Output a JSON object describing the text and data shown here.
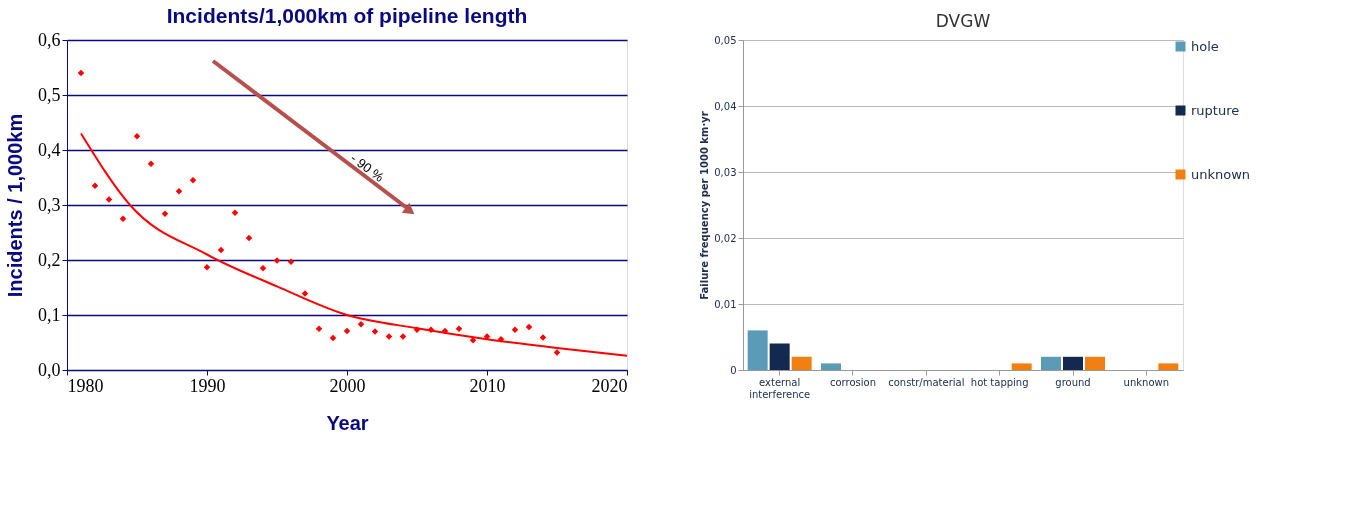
{
  "chart_data": [
    {
      "type": "scatter",
      "title": "Incidents/1,000km of pipeline length",
      "xlabel": "Year",
      "ylabel": "Incidents / 1,000km",
      "xlim": [
        1980,
        2020
      ],
      "xticks": [
        1980,
        1990,
        2000,
        2010,
        2020
      ],
      "ylim": [
        0,
        0.6
      ],
      "yticks": [
        {
          "value": 0,
          "label": "0,0"
        },
        {
          "value": 0.1,
          "label": "0,1"
        },
        {
          "value": 0.2,
          "label": "0,2"
        },
        {
          "value": 0.3,
          "label": "0,3"
        },
        {
          "value": 0.4,
          "label": "0,4"
        },
        {
          "value": 0.5,
          "label": "0,5"
        },
        {
          "value": 0.6,
          "label": "0,6"
        }
      ],
      "grid": "y",
      "legend": false,
      "series": [
        {
          "type": "scatter",
          "marker": "diamond",
          "color": "#ff0000",
          "x": [
            1981,
            1982,
            1983,
            1984,
            1985,
            1986,
            1987,
            1988,
            1989,
            1990,
            1991,
            1992,
            1993,
            1994,
            1995,
            1996,
            1997,
            1998,
            1999,
            2000,
            2001,
            2002,
            2003,
            2004,
            2005,
            2006,
            2007,
            2008,
            2009,
            2010,
            2011,
            2012,
            2013,
            2014,
            2015
          ],
          "values": [
            0.54,
            0.335,
            0.31,
            0.275,
            0.425,
            0.375,
            0.284,
            0.325,
            0.345,
            0.187,
            0.218,
            0.286,
            0.24,
            0.185,
            0.199,
            0.197,
            0.139,
            0.075,
            0.058,
            0.071,
            0.083,
            0.07,
            0.061,
            0.061,
            0.073,
            0.073,
            0.071,
            0.075,
            0.054,
            0.061,
            0.056,
            0.073,
            0.078,
            0.059,
            0.032
          ]
        },
        {
          "type": "line",
          "marker": "none",
          "line_style": "solid",
          "color": "#ff0000",
          "x": [
            1981,
            1984.5,
            1990,
            1995,
            2000,
            2005,
            2010,
            2015,
            2020
          ],
          "values": [
            0.43,
            0.3,
            0.21,
            0.152,
            0.1,
            0.076,
            0.056,
            0.04,
            0.026
          ]
        }
      ],
      "annotations": [
        "- 90 %"
      ]
    },
    {
      "type": "bar",
      "title": "DVGW",
      "ylabel": "Failure frequency per 1000 km·yr",
      "categories": [
        "external interference",
        "corrosion",
        "constr/material",
        "hot tapping",
        "ground",
        "unknown"
      ],
      "ylim": [
        0,
        0.05
      ],
      "yticks": [
        0,
        {
          "value": 0.01,
          "label": "0,01"
        },
        {
          "value": 0.02,
          "label": "0,02"
        },
        {
          "value": 0.03,
          "label": "0,03"
        },
        {
          "value": 0.04,
          "label": "0,04"
        },
        {
          "value": 0.05,
          "label": "0,05"
        }
      ],
      "grid": "y",
      "legend": "right",
      "series": [
        {
          "name": "hole",
          "color": "#5b9bb8",
          "values": [
            0.006,
            0.001,
            0,
            0,
            0.002,
            0
          ]
        },
        {
          "name": "rupture",
          "color": "#13294f",
          "values": [
            0.004,
            0,
            0,
            0,
            0.002,
            0
          ]
        },
        {
          "name": "unknown",
          "color": "#f08012",
          "values": [
            0.002,
            0,
            0,
            0.001,
            0.002,
            0.001
          ]
        }
      ]
    }
  ]
}
